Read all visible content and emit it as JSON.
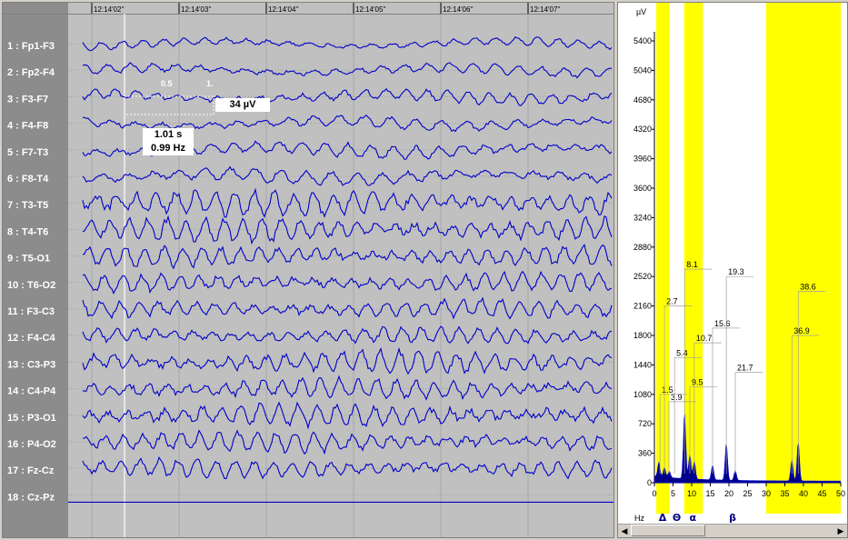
{
  "eeg": {
    "time_labels": [
      "12:14'02''",
      "12:14'03''",
      "12:14'04''",
      "12:14'05''",
      "12:14'06''",
      "12:14'07''"
    ],
    "channels": [
      "1 : Fp1-F3",
      "2 : Fp2-F4",
      "3 : F3-F7",
      "4 : F4-F8",
      "5 : F7-T3",
      "6 : F8-T4",
      "7 : T3-T5",
      "8 : T4-T6",
      "9 : T5-O1",
      "10 : T6-O2",
      "11 : F3-C3",
      "12 : F4-C4",
      "13 : C3-P3",
      "14 : C4-P4",
      "15 : P3-O1",
      "16 : P4-O2",
      "17 : Fz-Cz",
      "18 : Cz-Pz"
    ],
    "scale_ticks": [
      "0.5",
      "1."
    ],
    "amplitude_label": "34 µV",
    "duration_label": "1.01 s",
    "frequency_label": "0.99 Hz",
    "trace_color": "#0000c8",
    "background_color": "#c0c0c0"
  },
  "spectrum": {
    "y_unit": "µV",
    "y_ticks": [
      "5400",
      "5040",
      "4680",
      "4320",
      "3960",
      "3600",
      "3240",
      "2880",
      "2520",
      "2160",
      "1800",
      "1440",
      "1080",
      "720",
      "360",
      "0"
    ],
    "x_unit": "Hz",
    "x_ticks": [
      "0",
      "5",
      "10",
      "15",
      "20",
      "25",
      "30",
      "35",
      "40",
      "45",
      "50"
    ],
    "band_labels": [
      "Δ",
      "Θ",
      "α",
      "β"
    ],
    "band_color": "#ffff00",
    "peak_labels": [
      "1.5",
      "2.7",
      "3.9",
      "5.4",
      "8.1",
      "9.5",
      "10.7",
      "15.6",
      "19.3",
      "21.7",
      "36.9",
      "38.6"
    ],
    "fill_color": "#00008b"
  }
}
